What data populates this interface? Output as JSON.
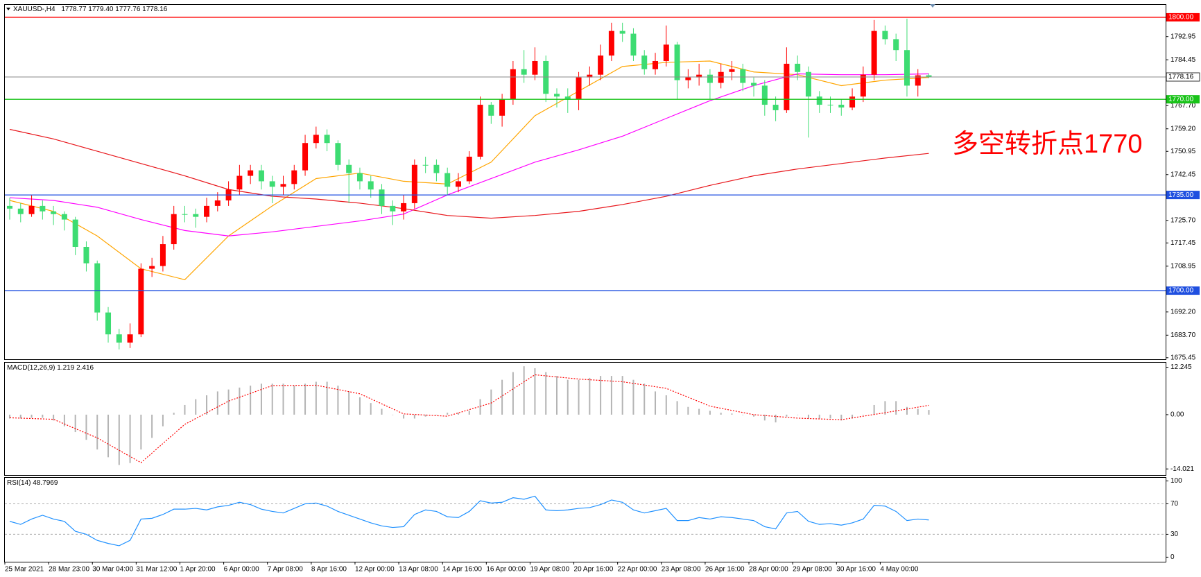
{
  "chart_data": [
    {
      "type": "candlestick",
      "symbol": "XAUUSD-,H4",
      "last_labels": [
        "1778.77",
        "1779.40",
        "1777.76",
        "1778.16"
      ],
      "categories": [
        "25 Mar 2021",
        null,
        null,
        null,
        "28 Mar 23:00",
        null,
        null,
        null,
        "30 Mar 04:00",
        null,
        null,
        null,
        "31 Mar 12:00",
        null,
        null,
        null,
        "1 Apr 20:00",
        null,
        null,
        null,
        "6 Apr 00:00",
        null,
        null,
        null,
        "7 Apr 08:00",
        null,
        null,
        null,
        "8 Apr 16:00",
        null,
        null,
        null,
        "12 Apr 00:00",
        null,
        null,
        null,
        "13 Apr 08:00",
        null,
        null,
        null,
        "14 Apr 16:00",
        null,
        null,
        null,
        "16 Apr 00:00",
        null,
        null,
        null,
        "19 Apr 08:00",
        null,
        null,
        null,
        "20 Apr 16:00",
        null,
        null,
        null,
        "22 Apr 00:00",
        null,
        null,
        null,
        "23 Apr 08:00",
        null,
        null,
        null,
        "26 Apr 16:00",
        null,
        null,
        null,
        "28 Apr 00:00",
        null,
        null,
        null,
        "29 Apr 08:00",
        null,
        null,
        null,
        "30 Apr 16:00",
        null,
        null,
        null,
        "4 May 00:00",
        null,
        null,
        null,
        null
      ],
      "open": [
        1731,
        1730,
        1728,
        1731,
        1729,
        1728,
        1726,
        1716,
        1710,
        1692,
        1684,
        1681,
        1684,
        1708,
        1709,
        1717,
        1728,
        1728,
        1727,
        1731,
        1733,
        1737,
        1742,
        1744,
        1740,
        1738,
        1739,
        1744,
        1754,
        1757,
        1754,
        1746,
        1743,
        1740,
        1737,
        1731,
        1729,
        1732,
        1746,
        1746,
        1743,
        1738,
        1740,
        1749,
        1768,
        1764,
        1770,
        1781,
        1779,
        1784,
        1772,
        1771,
        1770,
        1778,
        1779,
        1786,
        1795,
        1794,
        1786,
        1781,
        1784,
        1790,
        1777,
        1778,
        1779,
        1776,
        1780,
        1781,
        1776,
        1775,
        1768,
        1766,
        1783,
        1780,
        1771,
        1768,
        1768,
        1767,
        1771,
        1779,
        1795,
        1792,
        1788,
        1775,
        1778.77
      ],
      "high": [
        1734,
        1732,
        1735,
        1733,
        1731,
        1729,
        1727,
        1718,
        1711,
        1694,
        1686,
        1688,
        1710,
        1712,
        1720,
        1731,
        1731,
        1730,
        1734,
        1736,
        1740,
        1746,
        1746,
        1746,
        1742,
        1742,
        1746,
        1757,
        1760,
        1759,
        1755,
        1748,
        1745,
        1742,
        1739,
        1733,
        1735,
        1748,
        1749,
        1748,
        1745,
        1743,
        1751,
        1771,
        1769,
        1772,
        1784,
        1788,
        1789,
        1786,
        1774,
        1774,
        1780,
        1782,
        1790,
        1798,
        1798,
        1796,
        1788,
        1787,
        1797,
        1791,
        1781,
        1783,
        1781,
        1783,
        1784,
        1783,
        1778,
        1777,
        1771,
        1789,
        1786,
        1782,
        1773,
        1771,
        1770,
        1774,
        1782,
        1799,
        1797,
        1794,
        1799.5,
        1781,
        1779.4
      ],
      "low": [
        1726,
        1725,
        1727,
        1726,
        1724,
        1722,
        1713,
        1707,
        1689,
        1681,
        1678.5,
        1679,
        1683,
        1705,
        1707,
        1715,
        1725,
        1723,
        1725,
        1729,
        1731,
        1735,
        1739,
        1737,
        1732,
        1735,
        1737,
        1742,
        1752,
        1751,
        1744,
        1732,
        1737,
        1734,
        1728,
        1724,
        1726,
        1730,
        1743,
        1740,
        1735,
        1736,
        1739,
        1748,
        1761,
        1760,
        1768,
        1776,
        1777,
        1769,
        1767,
        1765,
        1766,
        1775,
        1777,
        1784,
        1791,
        1784,
        1779,
        1779,
        1782,
        1770,
        1774,
        1775,
        1770,
        1774,
        1777,
        1773,
        1771,
        1764,
        1762,
        1765,
        1777,
        1756,
        1765,
        1765,
        1764,
        1766,
        1769,
        1777,
        1790,
        1784,
        1771,
        1771,
        1777.76
      ],
      "close": [
        1730,
        1728,
        1731,
        1729,
        1728,
        1726,
        1716,
        1710,
        1692,
        1684,
        1681,
        1684,
        1708,
        1709,
        1717,
        1728,
        1728,
        1727,
        1731,
        1733,
        1737,
        1742,
        1744,
        1740,
        1738,
        1739,
        1744,
        1754,
        1757,
        1754,
        1746,
        1743,
        1740,
        1737,
        1731,
        1729,
        1732,
        1746,
        1746,
        1743,
        1738,
        1740,
        1749,
        1768,
        1764,
        1770,
        1781,
        1779,
        1784,
        1772,
        1771,
        1770,
        1778,
        1779,
        1786,
        1795,
        1794,
        1786,
        1781,
        1784,
        1790,
        1777,
        1778,
        1779,
        1776,
        1780,
        1781,
        1776,
        1775,
        1768,
        1766,
        1783,
        1780,
        1771,
        1768,
        1768,
        1767,
        1771,
        1779,
        1795,
        1792,
        1788,
        1775,
        1778.77,
        1778.16
      ],
      "colors": {
        "up": "#ff0000",
        "down": "#3ddc72"
      },
      "lines": [
        {
          "color": "#ffa500",
          "x": [
            0,
            4,
            8,
            12,
            16,
            20,
            24,
            28,
            32,
            36,
            40,
            44,
            48,
            52,
            56,
            60,
            64,
            68,
            72,
            76,
            80,
            84
          ],
          "values": [
            1733,
            1729,
            1720,
            1708,
            1704,
            1720,
            1731,
            1741,
            1743,
            1740,
            1739,
            1747,
            1764,
            1773,
            1782,
            1783.5,
            1784,
            1780,
            1779,
            1775,
            1777,
            1778
          ]
        },
        {
          "color": "#ff00ff",
          "x": [
            0,
            4,
            8,
            12,
            16,
            20,
            24,
            28,
            32,
            36,
            40,
            44,
            48,
            52,
            56,
            60,
            64,
            68,
            72,
            76,
            80,
            84
          ],
          "values": [
            1734,
            1733,
            1730.5,
            1726,
            1722,
            1720,
            1721.5,
            1723.5,
            1725.5,
            1728,
            1735,
            1741,
            1747,
            1751.5,
            1756.5,
            1763,
            1769.5,
            1775,
            1779.3,
            1779,
            1779,
            1779.3
          ]
        },
        {
          "color": "#e8161b",
          "x": [
            0,
            4,
            8,
            12,
            16,
            20,
            24,
            28,
            32,
            36,
            40,
            44,
            48,
            52,
            56,
            60,
            64,
            68,
            72,
            76,
            80,
            84
          ],
          "values": [
            1759,
            1755.5,
            1751,
            1746.5,
            1742,
            1737,
            1734.5,
            1733.5,
            1732,
            1730,
            1727.5,
            1726.5,
            1727.5,
            1729,
            1731.5,
            1734.5,
            1738.5,
            1742,
            1744.5,
            1746.5,
            1748.5,
            1750.2
          ]
        }
      ],
      "levels": [
        {
          "value": 1800,
          "label": "1800.00",
          "color": "#ff0000"
        },
        {
          "value": 1770,
          "label": "1770.00",
          "color": "#19c319"
        },
        {
          "value": 1735,
          "label": "1735.00",
          "color": "#1f4fe0"
        },
        {
          "value": 1700,
          "label": "1700.00",
          "color": "#1f4fe0"
        }
      ],
      "annotation": {
        "text": "多空转折点1770",
        "color": "#ff0000"
      },
      "ylim": [
        1674.9,
        1804.8
      ],
      "yticks": [
        1792.95,
        1784.45,
        {
          "value": 1767.7,
          "label": "1767.70"
        },
        {
          "value": 1759.2,
          "label": "1759.20"
        },
        1750.95,
        1742.45,
        {
          "value": 1725.7,
          "label": "1725.70"
        },
        1717.45,
        1708.95,
        {
          "value": 1692.2,
          "label": "1692.20"
        },
        {
          "value": 1683.7,
          "label": "1683.70"
        },
        1675.45
      ]
    },
    {
      "type": "macd",
      "title": "MACD(12,26,9)",
      "histogram": {
        "color": "#b4b4b4",
        "values": [
          -1,
          -1,
          -0.8,
          -0.8,
          -1.5,
          -3,
          -4.5,
          -6.5,
          -9,
          -11,
          -13,
          -12.5,
          -9,
          -6,
          -3,
          0.5,
          2.5,
          4,
          5,
          6,
          6.5,
          7,
          7.5,
          8,
          8,
          8,
          7.5,
          8,
          8.5,
          8.5,
          7.5,
          6,
          4.5,
          3,
          1.5,
          0,
          -1,
          -1,
          -0.5,
          0,
          0.5,
          0.5,
          1,
          4,
          6.5,
          9,
          11,
          12.5,
          12,
          11,
          10,
          9,
          9,
          9.5,
          10,
          10,
          10,
          9,
          8,
          6,
          5,
          3.5,
          2,
          1.5,
          1,
          0.5,
          0.3,
          0,
          -0.5,
          -1.5,
          -2,
          -0.5,
          0,
          -1,
          -1,
          -1,
          -1.5,
          -1,
          0,
          2.5,
          3.5,
          3.5,
          2,
          1.5,
          1.219
        ]
      },
      "signal": {
        "color": "#ff0000",
        "x": [
          0,
          4,
          8,
          12,
          16,
          20,
          24,
          28,
          32,
          36,
          40,
          44,
          48,
          52,
          56,
          60,
          64,
          68,
          72,
          76,
          80,
          84
        ],
        "values": [
          -0.8,
          -1.2,
          -6,
          -12.4,
          -2.5,
          3.5,
          7.5,
          7.6,
          5.4,
          0.2,
          -0.4,
          3,
          10.3,
          9.2,
          8.5,
          6.8,
          2.2,
          0,
          -0.9,
          -1.3,
          0.5,
          2.416
        ]
      },
      "ylim": [
        -15.6,
        13.6
      ],
      "yticks": [
        12.245,
        {
          "value": 0,
          "label": "0.00"
        },
        -14.021
      ]
    },
    {
      "type": "line",
      "title": "RSI(14)",
      "color": "#1e90ff",
      "values": [
        47,
        43,
        50,
        55,
        50,
        47,
        34,
        30,
        22,
        18,
        15,
        22,
        50,
        51,
        56,
        63,
        63,
        64,
        62,
        66,
        68,
        72,
        69,
        63,
        60,
        58,
        64,
        70,
        71,
        67,
        60,
        55,
        50,
        45,
        41,
        39,
        40,
        56,
        62,
        60,
        53,
        52,
        60,
        74,
        71,
        72,
        78,
        76,
        80,
        62,
        61,
        62,
        64,
        65,
        69,
        75,
        72,
        62,
        58,
        61,
        64,
        48,
        48,
        52,
        50,
        53,
        52,
        50,
        48,
        40,
        37,
        58,
        60,
        47,
        43,
        44,
        42,
        45,
        50,
        68,
        67,
        60,
        48,
        50,
        48.7969
      ],
      "ylim": [
        -6,
        105
      ],
      "yticks": [
        100,
        70,
        30,
        0
      ]
    }
  ]
}
